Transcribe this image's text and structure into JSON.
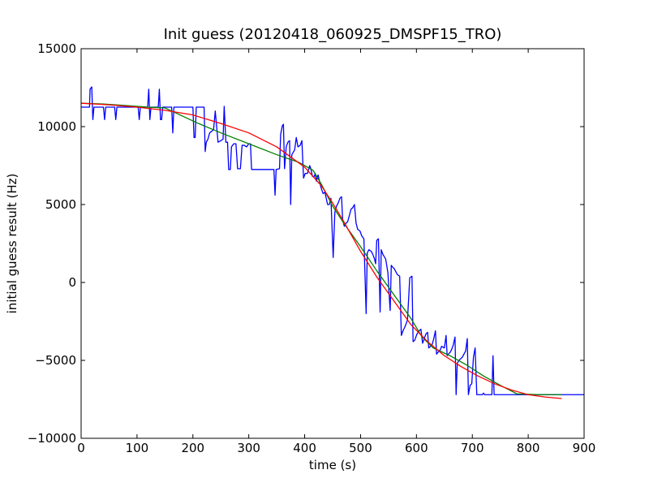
{
  "chart_data": {
    "type": "line",
    "title": "Init guess (20120418_060925_DMSPF15_TRO)",
    "xlabel": "time (s)",
    "ylabel": "initial guess result (Hz)",
    "xlim": [
      0,
      900
    ],
    "ylim": [
      -10000,
      15000
    ],
    "x_ticks": [
      0,
      100,
      200,
      300,
      400,
      500,
      600,
      700,
      800,
      900
    ],
    "y_ticks": [
      -10000,
      -5000,
      0,
      5000,
      10000,
      15000
    ],
    "grid": false,
    "legend": "none",
    "series": [
      {
        "color": "#0000ff",
        "points": [
          [
            0,
            11250
          ],
          [
            15,
            11250
          ],
          [
            16,
            12400
          ],
          [
            19,
            12550
          ],
          [
            21,
            10450
          ],
          [
            23,
            11250
          ],
          [
            40,
            11250
          ],
          [
            42,
            10450
          ],
          [
            44,
            11250
          ],
          [
            60,
            11250
          ],
          [
            62,
            10450
          ],
          [
            64,
            11250
          ],
          [
            102,
            11250
          ],
          [
            104,
            10450
          ],
          [
            106,
            11250
          ],
          [
            119,
            11250
          ],
          [
            121,
            12400
          ],
          [
            123,
            10450
          ],
          [
            125,
            11250
          ],
          [
            138,
            11250
          ],
          [
            140,
            12400
          ],
          [
            142,
            10450
          ],
          [
            144,
            10450
          ],
          [
            146,
            11250
          ],
          [
            162,
            11250
          ],
          [
            164,
            9600
          ],
          [
            166,
            11250
          ],
          [
            200,
            11250
          ],
          [
            202,
            9300
          ],
          [
            204,
            9300
          ],
          [
            206,
            11250
          ],
          [
            220,
            11250
          ],
          [
            222,
            8400
          ],
          [
            224,
            9000
          ],
          [
            227,
            9200
          ],
          [
            230,
            9600
          ],
          [
            237,
            9800
          ],
          [
            240,
            11000
          ],
          [
            245,
            9000
          ],
          [
            250,
            9100
          ],
          [
            254,
            9200
          ],
          [
            256,
            11300
          ],
          [
            259,
            9000
          ],
          [
            262,
            9000
          ],
          [
            264,
            7250
          ],
          [
            267,
            7250
          ],
          [
            269,
            8700
          ],
          [
            273,
            8900
          ],
          [
            277,
            8900
          ],
          [
            280,
            7300
          ],
          [
            285,
            7300
          ],
          [
            288,
            8800
          ],
          [
            292,
            8800
          ],
          [
            296,
            8700
          ],
          [
            300,
            8900
          ],
          [
            303,
            8900
          ],
          [
            305,
            7250
          ],
          [
            315,
            7250
          ],
          [
            325,
            7250
          ],
          [
            345,
            7250
          ],
          [
            347,
            5600
          ],
          [
            349,
            7250
          ],
          [
            355,
            7300
          ],
          [
            357,
            9500
          ],
          [
            360,
            10050
          ],
          [
            362,
            10150
          ],
          [
            364,
            7300
          ],
          [
            367,
            8700
          ],
          [
            370,
            9000
          ],
          [
            373,
            9100
          ],
          [
            375,
            5000
          ],
          [
            377,
            8200
          ],
          [
            382,
            8500
          ],
          [
            385,
            9300
          ],
          [
            388,
            8700
          ],
          [
            392,
            8800
          ],
          [
            395,
            9100
          ],
          [
            398,
            6700
          ],
          [
            401,
            7000
          ],
          [
            405,
            7000
          ],
          [
            409,
            7500
          ],
          [
            411,
            7300
          ],
          [
            414,
            6800
          ],
          [
            417,
            6800
          ],
          [
            419,
            7000
          ],
          [
            421,
            6500
          ],
          [
            424,
            6900
          ],
          [
            427,
            6400
          ],
          [
            430,
            6000
          ],
          [
            433,
            5700
          ],
          [
            436,
            5800
          ],
          [
            438,
            5500
          ],
          [
            441,
            5000
          ],
          [
            444,
            5000
          ],
          [
            447,
            5400
          ],
          [
            451,
            1600
          ],
          [
            454,
            4500
          ],
          [
            457,
            4900
          ],
          [
            460,
            5100
          ],
          [
            463,
            5400
          ],
          [
            466,
            5500
          ],
          [
            468,
            4000
          ],
          [
            471,
            3600
          ],
          [
            474,
            3800
          ],
          [
            477,
            3900
          ],
          [
            480,
            4300
          ],
          [
            483,
            4700
          ],
          [
            486,
            4800
          ],
          [
            489,
            5000
          ],
          [
            492,
            3800
          ],
          [
            495,
            3400
          ],
          [
            499,
            3300
          ],
          [
            502,
            3000
          ],
          [
            506,
            2800
          ],
          [
            510,
            -2000
          ],
          [
            512,
            1900
          ],
          [
            515,
            2100
          ],
          [
            519,
            2000
          ],
          [
            522,
            1800
          ],
          [
            525,
            1500
          ],
          [
            527,
            1200
          ],
          [
            529,
            2700
          ],
          [
            532,
            2800
          ],
          [
            535,
            -1900
          ],
          [
            537,
            2100
          ],
          [
            540,
            1800
          ],
          [
            545,
            1500
          ],
          [
            549,
            600
          ],
          [
            551,
            -700
          ],
          [
            553,
            -1800
          ],
          [
            555,
            1100
          ],
          [
            557,
            1000
          ],
          [
            560,
            900
          ],
          [
            563,
            700
          ],
          [
            566,
            500
          ],
          [
            570,
            400
          ],
          [
            573,
            -3400
          ],
          [
            576,
            -3100
          ],
          [
            580,
            -2800
          ],
          [
            584,
            -2400
          ],
          [
            588,
            300
          ],
          [
            592,
            400
          ],
          [
            594,
            -3800
          ],
          [
            597,
            -3700
          ],
          [
            601,
            -3300
          ],
          [
            605,
            -3100
          ],
          [
            608,
            -3000
          ],
          [
            611,
            -3900
          ],
          [
            614,
            -3600
          ],
          [
            617,
            -3300
          ],
          [
            620,
            -3200
          ],
          [
            622,
            -4200
          ],
          [
            625,
            -4100
          ],
          [
            628,
            -4000
          ],
          [
            631,
            -3600
          ],
          [
            634,
            -3100
          ],
          [
            636,
            -4600
          ],
          [
            638,
            -4500
          ],
          [
            641,
            -4400
          ],
          [
            643,
            -4300
          ],
          [
            645,
            -4100
          ],
          [
            650,
            -4200
          ],
          [
            653,
            -3400
          ],
          [
            655,
            -4700
          ],
          [
            657,
            -4600
          ],
          [
            660,
            -4500
          ],
          [
            663,
            -4300
          ],
          [
            666,
            -4000
          ],
          [
            669,
            -3500
          ],
          [
            671,
            -7200
          ],
          [
            673,
            -5200
          ],
          [
            676,
            -5000
          ],
          [
            679,
            -4900
          ],
          [
            682,
            -4800
          ],
          [
            685,
            -4600
          ],
          [
            688,
            -4400
          ],
          [
            691,
            -3600
          ],
          [
            693,
            -7200
          ],
          [
            696,
            -6600
          ],
          [
            699,
            -6500
          ],
          [
            702,
            -4800
          ],
          [
            705,
            -4200
          ],
          [
            708,
            -7200
          ],
          [
            718,
            -7200
          ],
          [
            720,
            -7100
          ],
          [
            722,
            -7200
          ],
          [
            735,
            -7200
          ],
          [
            737,
            -4700
          ],
          [
            739,
            -7200
          ],
          [
            900,
            -7200
          ]
        ]
      },
      {
        "color": "#008000",
        "points": [
          [
            0,
            11500
          ],
          [
            40,
            11450
          ],
          [
            80,
            11350
          ],
          [
            120,
            11250
          ],
          [
            150,
            11200
          ],
          [
            180,
            10700
          ],
          [
            210,
            10200
          ],
          [
            250,
            9600
          ],
          [
            300,
            8900
          ],
          [
            350,
            8200
          ],
          [
            390,
            7700
          ],
          [
            415,
            7200
          ],
          [
            430,
            6300
          ],
          [
            450,
            4900
          ],
          [
            470,
            3800
          ],
          [
            500,
            2300
          ],
          [
            530,
            700
          ],
          [
            560,
            -800
          ],
          [
            590,
            -2300
          ],
          [
            610,
            -3500
          ],
          [
            630,
            -4200
          ],
          [
            660,
            -4700
          ],
          [
            690,
            -5300
          ],
          [
            720,
            -6000
          ],
          [
            750,
            -6600
          ],
          [
            780,
            -7150
          ],
          [
            820,
            -7200
          ],
          [
            860,
            -7200
          ]
        ]
      },
      {
        "color": "#ff0000",
        "points": [
          [
            0,
            11500
          ],
          [
            50,
            11400
          ],
          [
            100,
            11250
          ],
          [
            150,
            11050
          ],
          [
            200,
            10750
          ],
          [
            250,
            10200
          ],
          [
            300,
            9600
          ],
          [
            350,
            8700
          ],
          [
            400,
            7400
          ],
          [
            430,
            6200
          ],
          [
            450,
            5100
          ],
          [
            470,
            3900
          ],
          [
            500,
            2000
          ],
          [
            530,
            300
          ],
          [
            560,
            -1200
          ],
          [
            590,
            -2700
          ],
          [
            620,
            -3800
          ],
          [
            650,
            -4700
          ],
          [
            680,
            -5400
          ],
          [
            710,
            -6000
          ],
          [
            740,
            -6500
          ],
          [
            770,
            -6900
          ],
          [
            800,
            -7200
          ],
          [
            830,
            -7350
          ],
          [
            860,
            -7450
          ]
        ]
      }
    ]
  }
}
